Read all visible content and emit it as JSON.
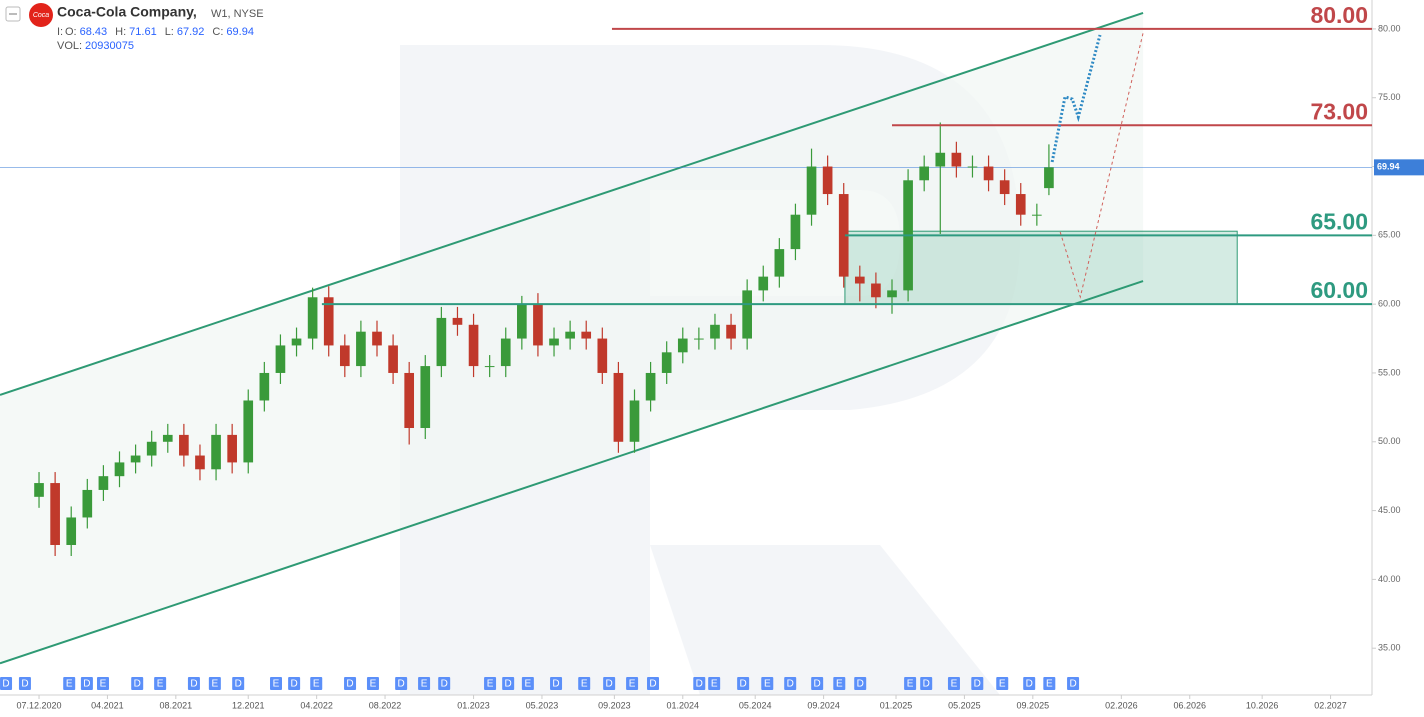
{
  "chart_data": {
    "type": "candlestick",
    "title": "Coca-Cola Company,",
    "interval": "W1, NYSE",
    "ohlc_labels": [
      "O:",
      "H:",
      "L:",
      "C:"
    ],
    "volume_label": "VOL:",
    "volume": 20930075,
    "up_color": "#3a9a3a",
    "down_color": "#c0392b",
    "x": [
      0,
      4,
      8,
      12,
      16,
      20,
      24,
      28,
      32,
      36,
      40,
      44,
      48,
      52,
      56,
      60,
      64,
      68,
      72,
      76,
      80,
      84,
      88,
      92,
      96,
      100,
      104,
      108,
      112,
      116,
      120,
      124,
      128,
      132,
      136,
      140,
      144,
      148,
      152,
      156,
      160,
      164,
      168,
      172,
      176,
      180,
      184,
      188,
      192,
      196,
      200,
      204,
      208,
      212,
      216,
      220,
      224,
      228,
      232,
      236,
      240,
      244,
      248,
      251
    ],
    "open": [
      46,
      47,
      42.5,
      44.5,
      46.5,
      47.5,
      48.5,
      49,
      50,
      50.5,
      49,
      48,
      50.5,
      48.5,
      53,
      55,
      57,
      57.5,
      60.5,
      57,
      55.5,
      58,
      57,
      55,
      51,
      55.5,
      59,
      58.5,
      55.5,
      55.5,
      57.5,
      60,
      57,
      57.5,
      58,
      57.5,
      55,
      50,
      53,
      55,
      56.5,
      57.5,
      57.5,
      58.5,
      57.5,
      61,
      62,
      64,
      66.5,
      70,
      68,
      62,
      61.5,
      60.5,
      61,
      69,
      70,
      71,
      70,
      70,
      69,
      68,
      66.5,
      68.43
    ],
    "high": [
      47.8,
      47.8,
      45.3,
      47.3,
      48.3,
      49.3,
      49.8,
      50.8,
      51.3,
      51.3,
      49.8,
      51.3,
      51.3,
      53.8,
      55.8,
      57.8,
      58.3,
      61.2,
      61.3,
      57.8,
      58.8,
      58.8,
      57.8,
      55.8,
      56.3,
      59.8,
      59.8,
      59.3,
      56.3,
      58.3,
      60.6,
      60.8,
      58.3,
      58.8,
      58.8,
      58.3,
      55.8,
      53.8,
      55.8,
      57.3,
      58.3,
      58.3,
      59.3,
      59.3,
      61.8,
      62.8,
      64.8,
      67.3,
      71.3,
      70.8,
      68.8,
      62.8,
      62.3,
      61.8,
      69.8,
      70.8,
      73.2,
      71.8,
      70.8,
      70.8,
      69.8,
      68.8,
      67.3,
      71.61
    ],
    "low": [
      45.2,
      41.7,
      41.7,
      43.7,
      45.7,
      46.7,
      47.7,
      48.2,
      49.2,
      48.2,
      47.2,
      47.2,
      47.7,
      47.7,
      52.2,
      54.2,
      56.2,
      56.7,
      56.2,
      54.7,
      54.7,
      56.2,
      54.2,
      49.8,
      50.2,
      54.7,
      57.7,
      54.7,
      54.7,
      54.7,
      56.7,
      56.2,
      56.2,
      56.7,
      56.7,
      54.2,
      49.2,
      49.2,
      52.2,
      54.2,
      55.7,
      56.7,
      56.7,
      56.7,
      56.7,
      60.2,
      61.2,
      63.2,
      65.7,
      67.2,
      61.2,
      60.2,
      59.7,
      59.3,
      60.2,
      68.2,
      65.1,
      69.2,
      69.2,
      68.2,
      67.2,
      65.7,
      65.7,
      67.92
    ],
    "close": [
      47,
      42.5,
      44.5,
      46.5,
      47.5,
      48.5,
      49,
      50,
      50.5,
      49,
      48,
      50.5,
      48.5,
      53,
      55,
      57,
      57.5,
      60.5,
      57,
      55.5,
      58,
      57,
      55,
      51,
      55.5,
      59,
      58.5,
      55.5,
      55.5,
      57.5,
      60,
      57,
      57.5,
      58,
      57.5,
      55,
      50,
      53,
      55,
      56.5,
      57.5,
      57.5,
      58.5,
      57.5,
      61,
      62,
      64,
      66.5,
      70,
      68,
      62,
      61.5,
      60.5,
      61,
      69,
      70,
      71,
      70,
      70,
      69,
      68,
      66.5,
      66.5,
      69.94
    ],
    "last_price_color": "#3d7fd9",
    "xlim": [
      -9.7,
      331.3
    ],
    "ylim": [
      31.6,
      82.1
    ],
    "xticks": [
      {
        "value": 0,
        "label": "07.12.2020"
      },
      {
        "value": 17,
        "label": "04.2021"
      },
      {
        "value": 34,
        "label": "08.2021"
      },
      {
        "value": 52,
        "label": "12.2021"
      },
      {
        "value": 69,
        "label": "04.2022"
      },
      {
        "value": 86,
        "label": "08.2022"
      },
      {
        "value": 108,
        "label": "01.2023"
      },
      {
        "value": 125,
        "label": "05.2023"
      },
      {
        "value": 143,
        "label": "09.2023"
      },
      {
        "value": 160,
        "label": "01.2024"
      },
      {
        "value": 178,
        "label": "05.2024"
      },
      {
        "value": 195,
        "label": "09.2024"
      },
      {
        "value": 213,
        "label": "01.2025"
      },
      {
        "value": 230,
        "label": "05.2025"
      },
      {
        "value": 247,
        "label": "09.2025"
      },
      {
        "value": 269,
        "label": "02.2026"
      },
      {
        "value": 286,
        "label": "06.2026"
      },
      {
        "value": 304,
        "label": "10.2026"
      },
      {
        "value": 321,
        "label": "02.2027"
      }
    ],
    "yticks": [
      {
        "value": 35,
        "label": "35.00"
      },
      {
        "value": 40,
        "label": "40.00"
      },
      {
        "value": 45,
        "label": "45.00"
      },
      {
        "value": 50,
        "label": "50.00"
      },
      {
        "value": 55,
        "label": "55.00"
      },
      {
        "value": 60,
        "label": "60.00"
      },
      {
        "value": 65,
        "label": "65.00"
      },
      {
        "value": 70,
        "label": "70.00"
      },
      {
        "value": 75,
        "label": "75.00"
      },
      {
        "value": 80,
        "label": "80.00"
      }
    ],
    "channel": {
      "color": "#2e9a74",
      "lines": [
        {
          "x": [
            -9.7,
            274.4
          ],
          "y": [
            53.4,
            81.16
          ]
        },
        {
          "x": [
            -9.7,
            274.4
          ],
          "y": [
            33.9,
            61.68
          ]
        }
      ]
    },
    "zone": {
      "x": [
        200.3,
        297.8
      ],
      "y": [
        60,
        65.3
      ],
      "color": "#9fd3c2"
    },
    "levels": [
      {
        "value": 80,
        "value_label": "80.00",
        "x_start": 142.4,
        "color": "#c0474a"
      },
      {
        "value": 73,
        "value_label": "73.00",
        "x_start": 212.0,
        "color": "#c0474a"
      },
      {
        "value": 65,
        "value_label": "65.00",
        "x_start": 200.3,
        "color": "#2e9a80"
      },
      {
        "value": 60,
        "value_label": "60.00",
        "x_start": 70.3,
        "color": "#2e9a80"
      }
    ],
    "forecasts": [
      {
        "color": "#2f8ac4",
        "style": "dotted",
        "x": [
          251.8,
          255.0,
          256.8,
          258.3,
          263.7
        ],
        "y": [
          70.33,
          75.06,
          74.9,
          73.6,
          79.56
        ]
      },
      {
        "color": "#d0605a",
        "style": "dashed",
        "x": [
          253.8,
          258.8,
          274.4
        ],
        "y": [
          65.24,
          60.52,
          79.7
        ]
      }
    ],
    "events": {
      "color": "#5b8ff9",
      "x": [
        -8.2,
        -3.5,
        7.5,
        11.9,
        15.9,
        24.4,
        30.1,
        38.5,
        43.7,
        49.5,
        58.9,
        63.4,
        68.9,
        77.3,
        83.0,
        90.0,
        95.7,
        100.7,
        112.1,
        116.6,
        121.5,
        128.5,
        135.5,
        141.7,
        147.4,
        152.6,
        164.1,
        167.8,
        175.0,
        181.0,
        186.7,
        193.4,
        198.9,
        204.1,
        216.5,
        220.5,
        227.4,
        233.2,
        239.4,
        246.1,
        251.1,
        257.0
      ],
      "labels": [
        "D",
        "D",
        "E",
        "D",
        "E",
        "D",
        "E",
        "D",
        "E",
        "D",
        "E",
        "D",
        "E",
        "D",
        "E",
        "D",
        "E",
        "D",
        "E",
        "D",
        "E",
        "D",
        "E",
        "D",
        "E",
        "D",
        "D",
        "E",
        "D",
        "E",
        "D",
        "D",
        "E",
        "D",
        "E",
        "D",
        "E",
        "D",
        "E",
        "D",
        "E",
        "D"
      ]
    }
  }
}
